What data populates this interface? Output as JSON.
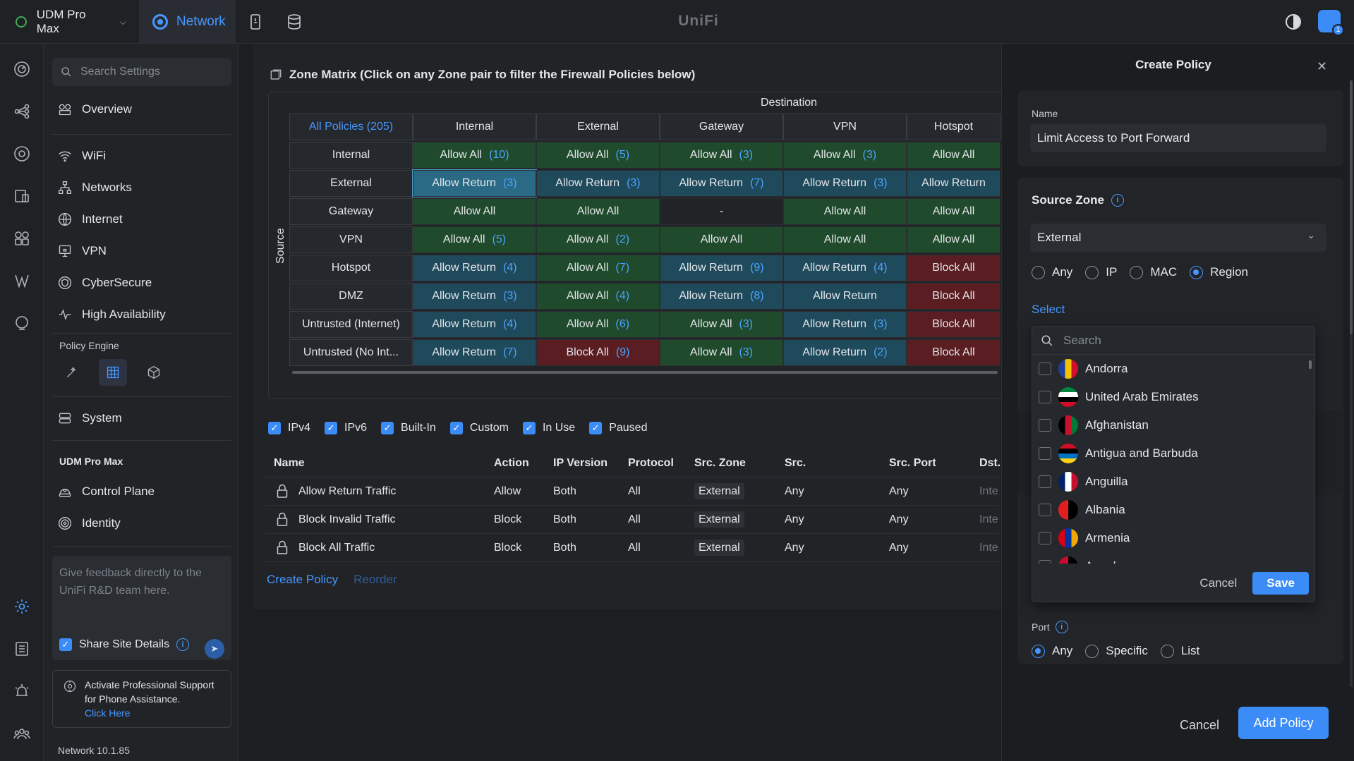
{
  "topbar": {
    "device": "UDM Pro Max",
    "app": "Network",
    "brand": "UniFi",
    "notification_count": "1"
  },
  "sidebar": {
    "search_placeholder": "Search Settings",
    "items": [
      {
        "label": "Overview",
        "icon": "overview-icon"
      },
      {
        "label": "WiFi",
        "icon": "wifi-icon"
      },
      {
        "label": "Networks",
        "icon": "networks-icon"
      },
      {
        "label": "Internet",
        "icon": "globe-icon"
      },
      {
        "label": "VPN",
        "icon": "vpn-icon"
      },
      {
        "label": "CyberSecure",
        "icon": "shield-icon"
      },
      {
        "label": "High Availability",
        "icon": "pulse-icon"
      }
    ],
    "policy_engine_label": "Policy Engine",
    "system_label": "System",
    "device_section": "UDM Pro Max",
    "control_plane": "Control Plane",
    "identity": "Identity",
    "feedback_placeholder": "Give feedback directly to the UniFi R&D team here.",
    "share_site_details": "Share Site Details",
    "support_text": "Activate Professional Support for Phone Assistance.",
    "support_link": "Click Here",
    "version": "Network 10.1.85"
  },
  "zone_matrix": {
    "title": "Zone Matrix (Click on any Zone pair to filter the Firewall Policies below)",
    "destination_label": "Destination",
    "source_label": "Source",
    "all_policies": "All Policies (205)",
    "columns": [
      "Internal",
      "External",
      "Gateway",
      "VPN",
      "Hotspot"
    ],
    "rows": [
      {
        "zone": "Internal",
        "cells": [
          {
            "t": "Allow All",
            "n": "(10)",
            "k": "allow"
          },
          {
            "t": "Allow All",
            "n": "(5)",
            "k": "allow"
          },
          {
            "t": "Allow All",
            "n": "(3)",
            "k": "allow"
          },
          {
            "t": "Allow All",
            "n": "(3)",
            "k": "allow"
          },
          {
            "t": "Allow All",
            "n": "",
            "k": "allow"
          }
        ]
      },
      {
        "zone": "External",
        "cells": [
          {
            "t": "Allow Return",
            "n": "(3)",
            "k": "return-sel"
          },
          {
            "t": "Allow Return",
            "n": "(3)",
            "k": "return"
          },
          {
            "t": "Allow Return",
            "n": "(7)",
            "k": "return"
          },
          {
            "t": "Allow Return",
            "n": "(3)",
            "k": "return"
          },
          {
            "t": "Allow Return",
            "n": "",
            "k": "return"
          }
        ]
      },
      {
        "zone": "Gateway",
        "cells": [
          {
            "t": "Allow All",
            "n": "",
            "k": "allow"
          },
          {
            "t": "Allow All",
            "n": "",
            "k": "allow"
          },
          {
            "t": "-",
            "n": "",
            "k": "none"
          },
          {
            "t": "Allow All",
            "n": "",
            "k": "allow"
          },
          {
            "t": "Allow All",
            "n": "",
            "k": "allow"
          }
        ]
      },
      {
        "zone": "VPN",
        "cells": [
          {
            "t": "Allow All",
            "n": "(5)",
            "k": "allow"
          },
          {
            "t": "Allow All",
            "n": "(2)",
            "k": "allow"
          },
          {
            "t": "Allow All",
            "n": "",
            "k": "allow"
          },
          {
            "t": "Allow All",
            "n": "",
            "k": "allow"
          },
          {
            "t": "Allow All",
            "n": "",
            "k": "allow"
          }
        ]
      },
      {
        "zone": "Hotspot",
        "cells": [
          {
            "t": "Allow Return",
            "n": "(4)",
            "k": "return"
          },
          {
            "t": "Allow All",
            "n": "(7)",
            "k": "allow"
          },
          {
            "t": "Allow Return",
            "n": "(9)",
            "k": "return"
          },
          {
            "t": "Allow Return",
            "n": "(4)",
            "k": "return"
          },
          {
            "t": "Block All",
            "n": "",
            "k": "block"
          }
        ]
      },
      {
        "zone": "DMZ",
        "cells": [
          {
            "t": "Allow Return",
            "n": "(3)",
            "k": "return"
          },
          {
            "t": "Allow All",
            "n": "(4)",
            "k": "allow"
          },
          {
            "t": "Allow Return",
            "n": "(8)",
            "k": "return"
          },
          {
            "t": "Allow Return",
            "n": "",
            "k": "return"
          },
          {
            "t": "Block All",
            "n": "",
            "k": "block"
          }
        ]
      },
      {
        "zone": "Untrusted (Internet)",
        "cells": [
          {
            "t": "Allow Return",
            "n": "(4)",
            "k": "return"
          },
          {
            "t": "Allow All",
            "n": "(6)",
            "k": "allow"
          },
          {
            "t": "Allow All",
            "n": "(3)",
            "k": "allow"
          },
          {
            "t": "Allow Return",
            "n": "(3)",
            "k": "return"
          },
          {
            "t": "Block All",
            "n": "",
            "k": "block"
          }
        ]
      },
      {
        "zone": "Untrusted (No Int...",
        "cells": [
          {
            "t": "Allow Return",
            "n": "(7)",
            "k": "return"
          },
          {
            "t": "Block All",
            "n": "(9)",
            "k": "block"
          },
          {
            "t": "Allow All",
            "n": "(3)",
            "k": "allow"
          },
          {
            "t": "Allow Return",
            "n": "(2)",
            "k": "return"
          },
          {
            "t": "Block All",
            "n": "",
            "k": "block"
          }
        ]
      }
    ]
  },
  "filters": [
    "IPv4",
    "IPv6",
    "Built-In",
    "Custom",
    "In Use",
    "Paused"
  ],
  "policy_table": {
    "headers": [
      "Name",
      "Action",
      "IP Version",
      "Protocol",
      "Src. Zone",
      "Src.",
      "Src. Port",
      "Dst."
    ],
    "rows": [
      [
        "Allow Return Traffic",
        "Allow",
        "Both",
        "All",
        "External",
        "Any",
        "Any",
        "Inte"
      ],
      [
        "Block Invalid Traffic",
        "Block",
        "Both",
        "All",
        "External",
        "Any",
        "Any",
        "Inte"
      ],
      [
        "Block All Traffic",
        "Block",
        "Both",
        "All",
        "External",
        "Any",
        "Any",
        "Inte"
      ]
    ],
    "create_link": "Create Policy",
    "reorder_link": "Reorder"
  },
  "create_policy": {
    "title": "Create Policy",
    "name_label": "Name",
    "name_value": "Limit Access to Port Forward",
    "source_zone_label": "Source Zone",
    "source_zone_value": "External",
    "source_options": [
      "Any",
      "IP",
      "MAC",
      "Region"
    ],
    "source_selected": "Region",
    "select_link": "Select",
    "region_search_placeholder": "Search",
    "regions": [
      {
        "name": "Andorra",
        "colors": [
          "#1e3f9c",
          "#f5c400",
          "#d0102a"
        ]
      },
      {
        "name": "United Arab Emirates",
        "colors": [
          "#00843d",
          "#ffffff",
          "#000000",
          "#d00c27"
        ]
      },
      {
        "name": "Afghanistan",
        "colors": [
          "#000000",
          "#c8102e",
          "#007a36"
        ]
      },
      {
        "name": "Antigua and Barbuda",
        "colors": [
          "#ce1126",
          "#000000",
          "#0072c6",
          "#fcd116"
        ]
      },
      {
        "name": "Anguilla",
        "colors": [
          "#012169",
          "#ffffff",
          "#c8102e"
        ]
      },
      {
        "name": "Albania",
        "colors": [
          "#e41e20",
          "#000000"
        ]
      },
      {
        "name": "Armenia",
        "colors": [
          "#d90012",
          "#0033a0",
          "#f2a800"
        ]
      },
      {
        "name": "Angola",
        "colors": [
          "#cc092f",
          "#000000"
        ]
      }
    ],
    "dropdown_cancel": "Cancel",
    "dropdown_save": "Save",
    "port_label": "Port",
    "port_options": [
      "Any",
      "Specific",
      "List"
    ],
    "port_selected": "Any",
    "footer_cancel": "Cancel",
    "footer_add": "Add Policy"
  }
}
